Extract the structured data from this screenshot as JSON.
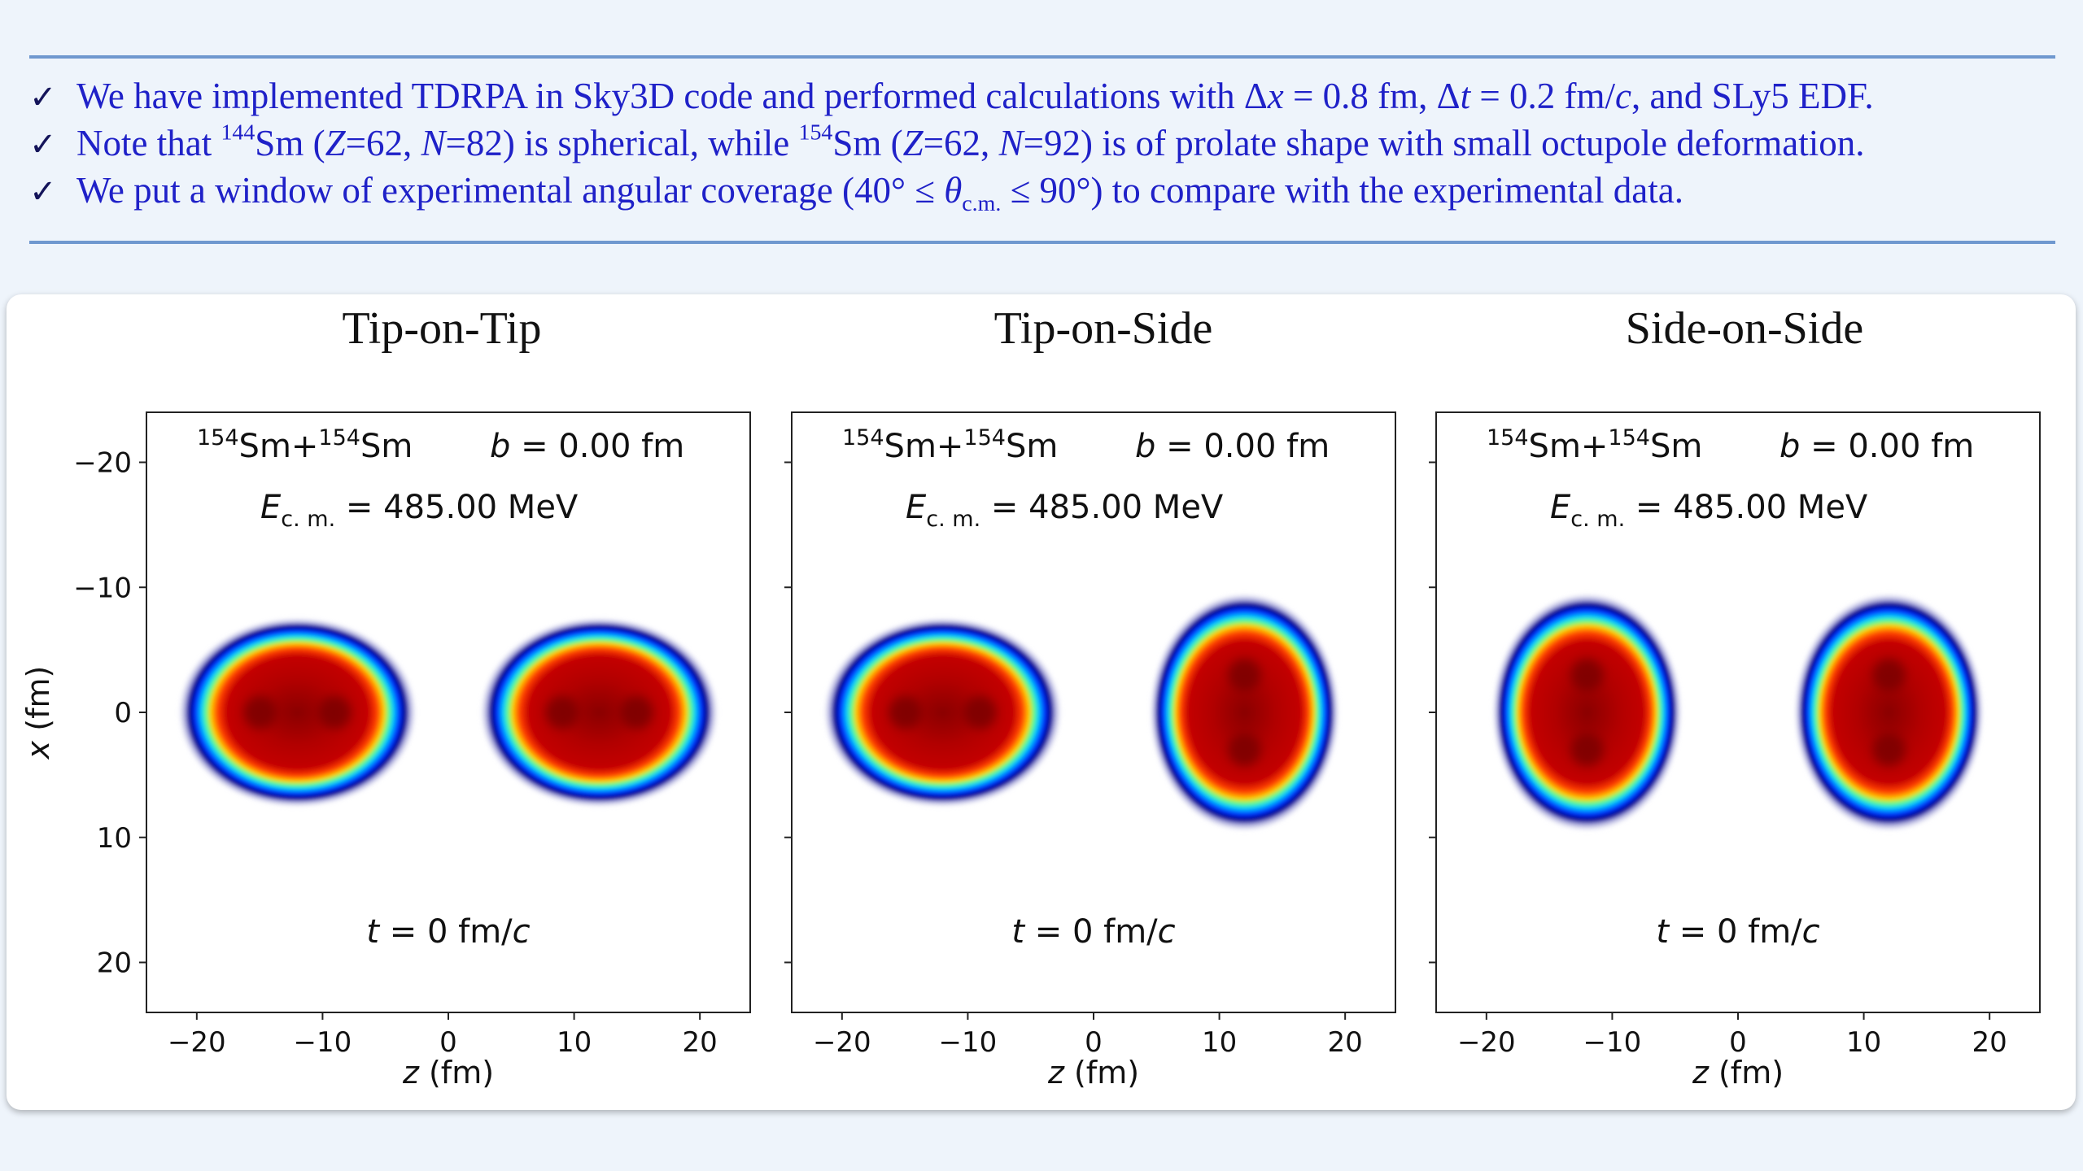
{
  "bullets": [
    {
      "check": "✓",
      "t1": "We have implemented TDRPA in Sky3D code and performed calculations with Δ",
      "t2": "x",
      "t3": " = 0.8 fm, Δ",
      "t4": "t",
      "t5": " = 0.2 fm/",
      "t6": "c",
      "t7": ", and SLy5 EDF."
    },
    {
      "check": "✓",
      "t1": "Note that ",
      "sup1": "144",
      "t2": "Sm (",
      "t3": "Z",
      "t4": "=62, ",
      "t5": "N",
      "t6": "=82) is spherical, while ",
      "sup2": "154",
      "t7": "Sm (",
      "t8": "Z",
      "t9": "=62, ",
      "t10": "N",
      "t11": "=92) is of prolate shape with small octupole deformation."
    },
    {
      "check": "✓",
      "t1": "We put a window of experimental angular coverage (40° ≤ ",
      "theta": "θ",
      "sub": "c.m.",
      "t2": " ≤ 90°) to compare with the experimental data."
    }
  ],
  "panels": [
    {
      "title": "Tip-on-Tip",
      "reaction": {
        "sup1": "154",
        "n1": "Sm+",
        "sup2": "154",
        "n2": "Sm"
      },
      "impact": {
        "sym": "b",
        "eq": " = 0.00 fm"
      },
      "energy": {
        "sym": "E",
        "sub": "c. m.",
        "eq": " = 485.00 MeV"
      },
      "time": {
        "sym": "t",
        "eq": " = 0 fm/",
        "unit": "c"
      },
      "nuclei": [
        {
          "z": -12,
          "x": 0,
          "orientation": "horizontal"
        },
        {
          "z": 12,
          "x": 0,
          "orientation": "horizontal"
        }
      ]
    },
    {
      "title": "Tip-on-Side",
      "reaction": {
        "sup1": "154",
        "n1": "Sm+",
        "sup2": "154",
        "n2": "Sm"
      },
      "impact": {
        "sym": "b",
        "eq": " = 0.00 fm"
      },
      "energy": {
        "sym": "E",
        "sub": "c. m.",
        "eq": " = 485.00 MeV"
      },
      "time": {
        "sym": "t",
        "eq": " = 0 fm/",
        "unit": "c"
      },
      "nuclei": [
        {
          "z": -12,
          "x": 0,
          "orientation": "horizontal"
        },
        {
          "z": 12,
          "x": 0,
          "orientation": "vertical"
        }
      ]
    },
    {
      "title": "Side-on-Side",
      "reaction": {
        "sup1": "154",
        "n1": "Sm+",
        "sup2": "154",
        "n2": "Sm"
      },
      "impact": {
        "sym": "b",
        "eq": " = 0.00 fm"
      },
      "energy": {
        "sym": "E",
        "sub": "c. m.",
        "eq": " = 485.00 MeV"
      },
      "time": {
        "sym": "t",
        "eq": " = 0 fm/",
        "unit": "c"
      },
      "nuclei": [
        {
          "z": -12,
          "x": 0,
          "orientation": "vertical"
        },
        {
          "z": 12,
          "x": 0,
          "orientation": "vertical"
        }
      ]
    }
  ],
  "axes": {
    "xlabel_sym": "z",
    "xlabel_unit": " (fm)",
    "ylabel_sym": "x",
    "ylabel_unit": " (fm)",
    "zlim": [
      -24,
      24
    ],
    "xlim": [
      -24,
      24
    ],
    "x_ticks": [
      "−20",
      "−10",
      "0",
      "10",
      "20"
    ],
    "y_ticks": [
      "−20",
      "−10",
      "0",
      "10",
      "20"
    ],
    "y_inverted": true
  },
  "colors": {
    "bullet_text": "#1f21c8",
    "rule": "#6f98cf",
    "density_colormap": "jet"
  }
}
